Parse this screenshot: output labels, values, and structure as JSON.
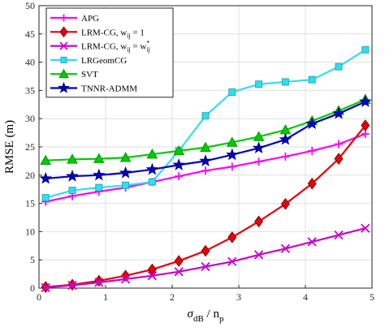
{
  "chart_data": {
    "type": "line",
    "xlabel_main": "σ",
    "xlabel_sub": "dB",
    "xlabel_mid": " / n",
    "xlabel_sub2": "p",
    "ylabel": "RMSE (m)",
    "xlim": [
      0,
      5
    ],
    "ylim": [
      0,
      50
    ],
    "xticks": [
      0,
      1,
      2,
      3,
      4,
      5
    ],
    "yticks": [
      0,
      5,
      10,
      15,
      20,
      25,
      30,
      35,
      40,
      45,
      50
    ],
    "grid": true,
    "legend_position": "top-left",
    "x": [
      0.1,
      0.5,
      0.9,
      1.3,
      1.7,
      2.1,
      2.5,
      2.9,
      3.3,
      3.7,
      4.1,
      4.5,
      4.9
    ],
    "series": [
      {
        "name": "APG",
        "color": "#ff00ff",
        "marker": "plus",
        "values": [
          15.3,
          16.3,
          17.1,
          17.8,
          18.8,
          19.8,
          20.8,
          21.5,
          22.4,
          23.3,
          24.3,
          25.5,
          27.3
        ]
      },
      {
        "name": "LRM-CG, w",
        "name_sub": "ij",
        "name_suffix": " = 1",
        "color": "#e8000b",
        "marker": "diamond",
        "values": [
          0.2,
          0.6,
          1.3,
          2.2,
          3.3,
          4.8,
          6.6,
          9.0,
          11.8,
          14.9,
          18.5,
          22.9,
          28.8
        ]
      },
      {
        "name": "LRM-CG, w",
        "name_sub": "ij",
        "name_suffix": " = w",
        "name_sup2": "*",
        "name_sub2": "ij",
        "color": "#cc00cc",
        "marker": "x",
        "values": [
          0.1,
          0.5,
          1.0,
          1.6,
          2.2,
          2.9,
          3.8,
          4.7,
          5.9,
          7.0,
          8.2,
          9.4,
          10.6
        ]
      },
      {
        "name": "LRGeomCG",
        "color": "#33ddee",
        "marker": "square",
        "values": [
          16.0,
          17.3,
          17.8,
          18.2,
          18.8,
          24.3,
          30.5,
          34.7,
          36.1,
          36.5,
          36.9,
          39.2,
          42.2
        ]
      },
      {
        "name": "SVT",
        "color": "#00cc00",
        "marker": "triangle",
        "values": [
          22.6,
          22.8,
          22.9,
          23.1,
          23.7,
          24.3,
          24.9,
          25.8,
          26.8,
          28.0,
          29.6,
          31.4,
          33.4
        ]
      },
      {
        "name": "TNNR-ADMM",
        "color": "#0000cc",
        "marker": "star",
        "values": [
          19.4,
          19.8,
          20.0,
          20.4,
          21.0,
          21.8,
          22.5,
          23.6,
          24.8,
          26.3,
          29.1,
          30.9,
          33.0
        ]
      }
    ]
  }
}
